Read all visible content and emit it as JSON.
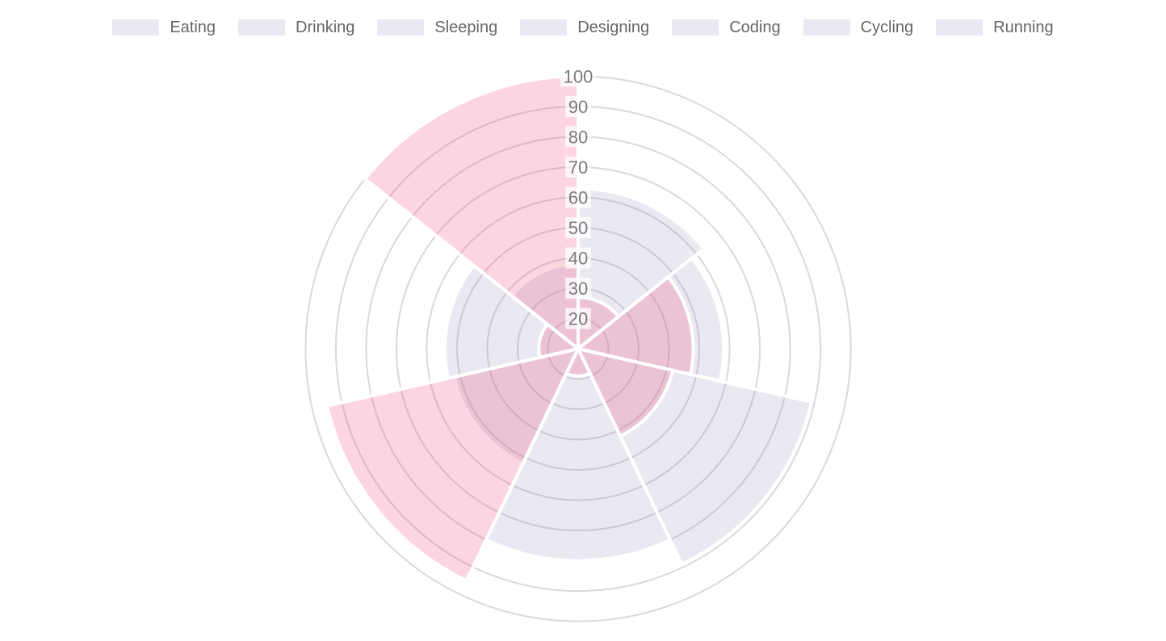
{
  "legend": {
    "position": "top",
    "items": [
      {
        "label": "Eating"
      },
      {
        "label": "Drinking"
      },
      {
        "label": "Sleeping"
      },
      {
        "label": "Designing"
      },
      {
        "label": "Coding"
      },
      {
        "label": "Cycling"
      },
      {
        "label": "Running"
      }
    ]
  },
  "chart_data": {
    "type": "polarArea",
    "categories": [
      "Eating",
      "Drinking",
      "Sleeping",
      "Designing",
      "Coding",
      "Cycling",
      "Running"
    ],
    "series": [
      {
        "id": "gray-series",
        "color": "rgba(150,140,186,0.20)",
        "values": [
          63,
          58,
          89,
          80,
          52,
          54,
          38
        ]
      },
      {
        "id": "pink-series",
        "color": "rgba(243,80,125,0.24)",
        "values": [
          27,
          48,
          42,
          19,
          95,
          23,
          100
        ]
      }
    ],
    "scale": {
      "min": 10,
      "max": 100,
      "step": 10,
      "visible_tick_labels": [
        "20",
        "30",
        "40",
        "50",
        "60",
        "70",
        "80",
        "90",
        "100"
      ]
    },
    "start_angle": "top",
    "direction": "clockwise",
    "grid": true,
    "legend_position": "top"
  },
  "style": {
    "background": "#FFFFFF",
    "grid_color": "#D9D9D9",
    "sector_border_color": "#FFFFFF",
    "tick_color": "#7B7B7B",
    "tick_backdrop": "rgba(255,255,255,0.75)",
    "legend_text_color": "#666666",
    "legend_swatch_fill": "#EAE8F1"
  }
}
